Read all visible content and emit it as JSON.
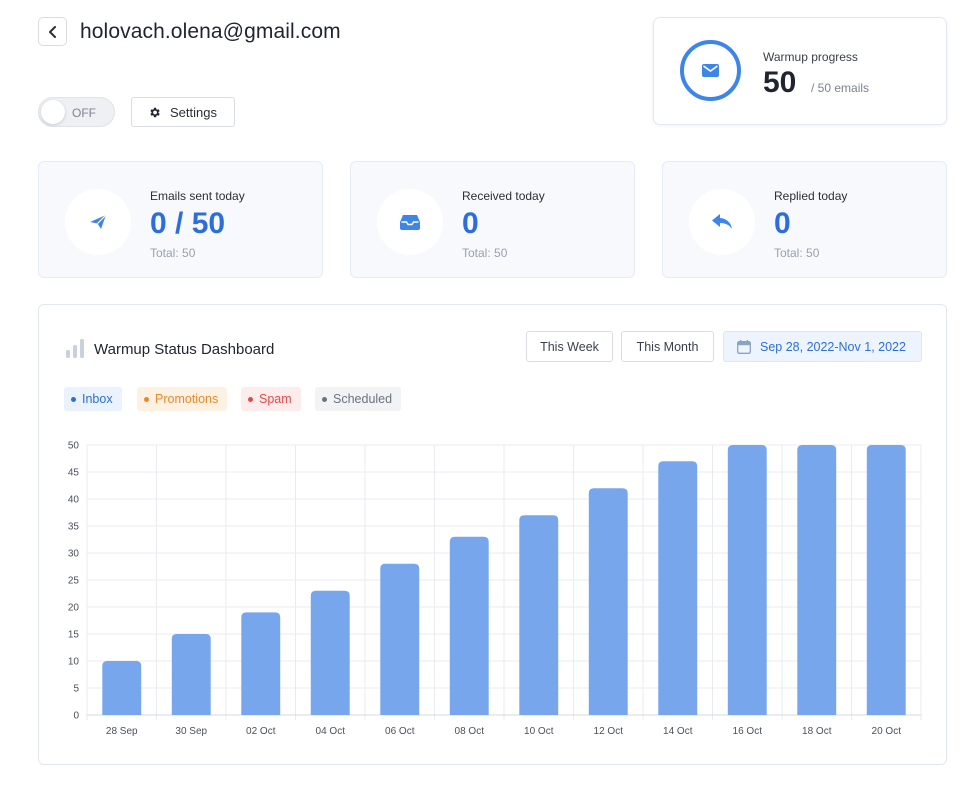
{
  "header": {
    "email": "holovach.olena@gmail.com",
    "back_icon": "chevron-left-icon"
  },
  "controls": {
    "toggle_label": "OFF",
    "settings_label": "Settings"
  },
  "warmup_progress": {
    "label": "Warmup progress",
    "value": "50",
    "total": "/ 50 emails",
    "icon": "envelope-icon",
    "accent": "#3d86e8"
  },
  "stats": [
    {
      "label": "Emails sent today",
      "value": "0 / 50",
      "total": "Total: 50",
      "icon": "paper-plane-icon"
    },
    {
      "label": "Received today",
      "value": "0",
      "total": "Total: 50",
      "icon": "inbox-tray-icon"
    },
    {
      "label": "Replied today",
      "value": "0",
      "total": "Total: 50",
      "icon": "reply-arrow-icon"
    }
  ],
  "dashboard": {
    "title": "Warmup Status Dashboard",
    "buttons": {
      "week": "This Week",
      "month": "This Month"
    },
    "date_range": "Sep 28, 2022-Nov 1, 2022",
    "legend": [
      {
        "label": "Inbox",
        "color": "#2c6fd8",
        "bg": "#eaf2fd"
      },
      {
        "label": "Promotions",
        "color": "#e8892b",
        "bg": "#fdf1e4"
      },
      {
        "label": "Spam",
        "color": "#e24b4b",
        "bg": "#fdecec"
      },
      {
        "label": "Scheduled",
        "color": "#6b7280",
        "bg": "#f2f3f5"
      }
    ]
  },
  "chart_data": {
    "type": "bar",
    "categories": [
      "28 Sep",
      "30 Sep",
      "02 Oct",
      "04 Oct",
      "06 Oct",
      "08 Oct",
      "10 Oct",
      "12 Oct",
      "14 Oct",
      "16 Oct",
      "18 Oct",
      "20 Oct"
    ],
    "values": [
      10,
      15,
      19,
      23,
      28,
      33,
      37,
      42,
      47,
      50,
      50,
      50
    ],
    "yticks": [
      "0",
      "5",
      "10",
      "15",
      "20",
      "25",
      "30",
      "35",
      "40",
      "45",
      "50"
    ],
    "ylim": [
      0,
      50
    ],
    "bar_color": "#78a6ec",
    "grid": true
  }
}
